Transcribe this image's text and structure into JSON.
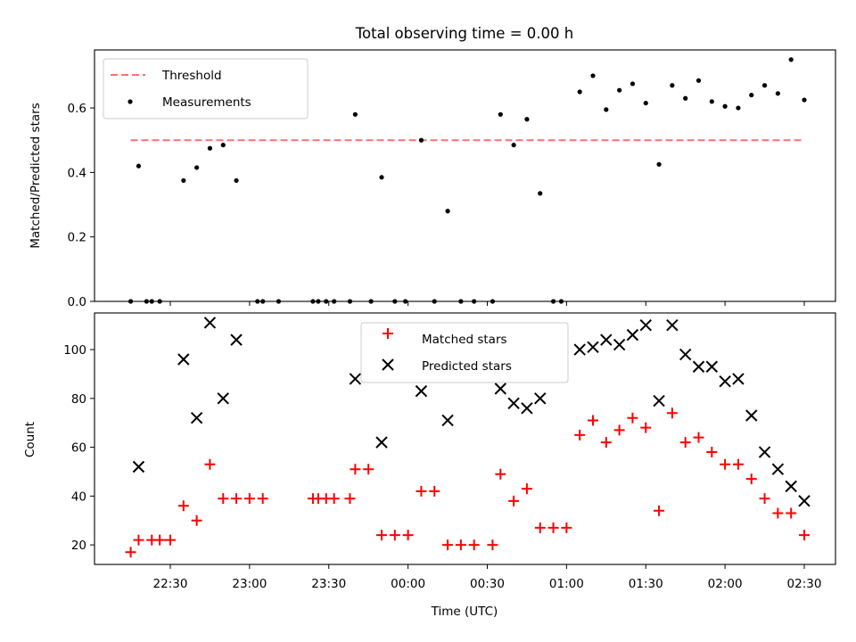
{
  "figure": {
    "title": "Total observing time = 0.00 h",
    "xlabel": "Time (UTC)",
    "xticks": [
      "22:30",
      "23:00",
      "23:30",
      "00:00",
      "00:30",
      "01:00",
      "01:30",
      "02:00",
      "02:30"
    ]
  },
  "colors": {
    "threshold": "#ff7070",
    "measurement": "#000000",
    "matched": "#ff0000",
    "predicted": "#000000"
  },
  "chart_data": [
    {
      "type": "scatter",
      "ylabel": "Matched/Predicted stars",
      "ylim": [
        0,
        0.78
      ],
      "yticks": [
        "0.0",
        "0.2",
        "0.4",
        "0.6"
      ],
      "legend": {
        "placement": "upper-left",
        "entries": [
          "Threshold",
          "Measurements"
        ]
      },
      "threshold": {
        "name": "Threshold",
        "value": 0.5,
        "x_range": [
          "22:15",
          "02:30"
        ]
      },
      "series": [
        {
          "name": "Measurements",
          "points": [
            [
              "22:15",
              0.0
            ],
            [
              "22:18",
              0.42
            ],
            [
              "22:21",
              0.0
            ],
            [
              "22:23",
              0.0
            ],
            [
              "22:26",
              0.0
            ],
            [
              "22:35",
              0.375
            ],
            [
              "22:40",
              0.415
            ],
            [
              "22:45",
              0.475
            ],
            [
              "22:50",
              0.485
            ],
            [
              "22:55",
              0.375
            ],
            [
              "23:03",
              0.0
            ],
            [
              "23:05",
              0.0
            ],
            [
              "23:11",
              0.0
            ],
            [
              "23:24",
              0.0
            ],
            [
              "23:26",
              0.0
            ],
            [
              "23:29",
              0.0
            ],
            [
              "23:32",
              0.0
            ],
            [
              "23:38",
              0.0
            ],
            [
              "23:40",
              0.58
            ],
            [
              "23:46",
              0.0
            ],
            [
              "23:50",
              0.385
            ],
            [
              "23:55",
              0.0
            ],
            [
              "23:59",
              0.0
            ],
            [
              "00:05",
              0.5
            ],
            [
              "00:10",
              0.0
            ],
            [
              "00:15",
              0.28
            ],
            [
              "00:20",
              0.0
            ],
            [
              "00:25",
              0.0
            ],
            [
              "00:32",
              0.0
            ],
            [
              "00:35",
              0.58
            ],
            [
              "00:40",
              0.485
            ],
            [
              "00:45",
              0.565
            ],
            [
              "00:50",
              0.335
            ],
            [
              "00:55",
              0.0
            ],
            [
              "00:58",
              0.0
            ],
            [
              "01:05",
              0.65
            ],
            [
              "01:10",
              0.7
            ],
            [
              "01:15",
              0.595
            ],
            [
              "01:20",
              0.655
            ],
            [
              "01:25",
              0.675
            ],
            [
              "01:30",
              0.615
            ],
            [
              "01:35",
              0.425
            ],
            [
              "01:40",
              0.67
            ],
            [
              "01:45",
              0.63
            ],
            [
              "01:50",
              0.685
            ],
            [
              "01:55",
              0.62
            ],
            [
              "02:00",
              0.605
            ],
            [
              "02:05",
              0.6
            ],
            [
              "02:10",
              0.64
            ],
            [
              "02:15",
              0.67
            ],
            [
              "02:20",
              0.645
            ],
            [
              "02:25",
              0.75
            ],
            [
              "02:30",
              0.625
            ]
          ]
        }
      ]
    },
    {
      "type": "scatter",
      "ylabel": "Count",
      "ylim": [
        12,
        115
      ],
      "yticks": [
        "20",
        "40",
        "60",
        "80",
        "100"
      ],
      "legend": {
        "placement": "upper-center",
        "entries": [
          "Matched stars",
          "Predicted stars"
        ]
      },
      "series": [
        {
          "name": "Matched stars",
          "points": [
            [
              "22:15",
              17
            ],
            [
              "22:18",
              22
            ],
            [
              "22:23",
              22
            ],
            [
              "22:26",
              22
            ],
            [
              "22:30",
              22
            ],
            [
              "22:35",
              36
            ],
            [
              "22:40",
              30
            ],
            [
              "22:45",
              53
            ],
            [
              "22:50",
              39
            ],
            [
              "22:55",
              39
            ],
            [
              "23:00",
              39
            ],
            [
              "23:05",
              39
            ],
            [
              "23:24",
              39
            ],
            [
              "23:26",
              39
            ],
            [
              "23:29",
              39
            ],
            [
              "23:32",
              39
            ],
            [
              "23:38",
              39
            ],
            [
              "23:40",
              51
            ],
            [
              "23:45",
              51
            ],
            [
              "23:50",
              24
            ],
            [
              "23:55",
              24
            ],
            [
              "00:00",
              24
            ],
            [
              "00:05",
              42
            ],
            [
              "00:10",
              42
            ],
            [
              "00:15",
              20
            ],
            [
              "00:20",
              20
            ],
            [
              "00:25",
              20
            ],
            [
              "00:32",
              20
            ],
            [
              "00:35",
              49
            ],
            [
              "00:40",
              38
            ],
            [
              "00:45",
              43
            ],
            [
              "00:50",
              27
            ],
            [
              "00:55",
              27
            ],
            [
              "01:00",
              27
            ],
            [
              "01:05",
              65
            ],
            [
              "01:10",
              71
            ],
            [
              "01:15",
              62
            ],
            [
              "01:20",
              67
            ],
            [
              "01:25",
              72
            ],
            [
              "01:30",
              68
            ],
            [
              "01:35",
              34
            ],
            [
              "01:40",
              74
            ],
            [
              "01:45",
              62
            ],
            [
              "01:50",
              64
            ],
            [
              "01:55",
              58
            ],
            [
              "02:00",
              53
            ],
            [
              "02:05",
              53
            ],
            [
              "02:10",
              47
            ],
            [
              "02:15",
              39
            ],
            [
              "02:20",
              33
            ],
            [
              "02:25",
              33
            ],
            [
              "02:30",
              24
            ]
          ]
        },
        {
          "name": "Predicted stars",
          "points": [
            [
              "22:18",
              52
            ],
            [
              "22:35",
              96
            ],
            [
              "22:40",
              72
            ],
            [
              "22:45",
              111
            ],
            [
              "22:50",
              80
            ],
            [
              "22:55",
              104
            ],
            [
              "23:40",
              88
            ],
            [
              "23:50",
              62
            ],
            [
              "00:05",
              83
            ],
            [
              "00:15",
              71
            ],
            [
              "00:35",
              84
            ],
            [
              "00:40",
              78
            ],
            [
              "00:45",
              76
            ],
            [
              "00:50",
              80
            ],
            [
              "01:05",
              100
            ],
            [
              "01:10",
              101
            ],
            [
              "01:15",
              104
            ],
            [
              "01:20",
              102
            ],
            [
              "01:25",
              106
            ],
            [
              "01:30",
              110
            ],
            [
              "01:35",
              79
            ],
            [
              "01:40",
              110
            ],
            [
              "01:45",
              98
            ],
            [
              "01:50",
              93
            ],
            [
              "01:55",
              93
            ],
            [
              "02:00",
              87
            ],
            [
              "02:05",
              88
            ],
            [
              "02:10",
              73
            ],
            [
              "02:15",
              58
            ],
            [
              "02:20",
              51
            ],
            [
              "02:25",
              44
            ],
            [
              "02:30",
              38
            ]
          ]
        }
      ]
    }
  ]
}
